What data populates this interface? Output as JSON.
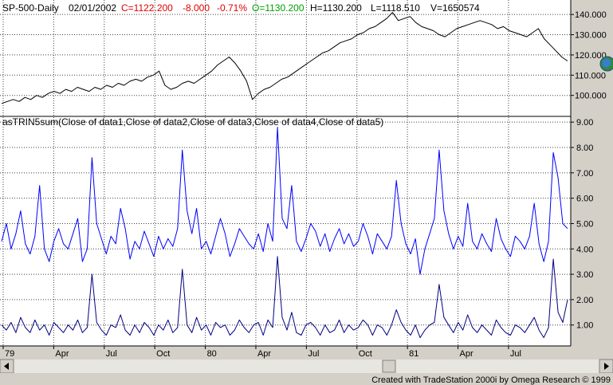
{
  "header": {
    "symbol": "SP-500-Daily",
    "date": "02/01/2002",
    "close": "C=1122.200",
    "change": "-8.000",
    "change_pct": "-0.71%",
    "open": "O=1130.200",
    "high": "H=1130.200",
    "low": "L=1118.510",
    "volume": "V=1650574"
  },
  "indicator_label": "asTRIN5sum(Close of data1,Close of data2,Close of data3,Close of data4,Close of data5)",
  "footer": {
    "credit": "Created with TradeStation 2000i by Omega Research © 1999"
  },
  "colors": {
    "header_change": "#e00000",
    "header_open": "#00a000",
    "price_line": "#000000",
    "trin_sum_line": "#0000ff",
    "trin_daily_line": "#000080",
    "background": "#ffffff",
    "axis_panel": "#d4d0c8"
  },
  "icons": [
    "globe-icon",
    "scroll-left-arrow-icon",
    "scroll-right-arrow-icon"
  ],
  "chart_data": [
    {
      "type": "line",
      "name": "price-panel",
      "x_ticks": [
        "79",
        "Apr",
        "Jul",
        "Oct",
        "80",
        "Apr",
        "Jul",
        "Oct",
        "81",
        "Apr",
        "Jul"
      ],
      "y_ticks": [
        "100.000",
        "110.000",
        "120.000",
        "130.000",
        "140.000"
      ],
      "ylim": [
        92,
        144
      ],
      "grid": true,
      "series": [
        {
          "values": [
            96,
            97,
            98,
            97,
            99,
            98,
            100,
            99,
            101,
            102,
            101,
            103,
            102,
            104,
            103,
            102,
            104,
            103,
            105,
            104,
            106,
            105,
            107,
            108,
            107,
            109,
            110,
            112,
            105,
            103,
            104,
            106,
            107,
            106,
            108,
            110,
            112,
            115,
            117,
            119,
            116,
            112,
            107,
            98,
            101,
            103,
            104,
            106,
            108,
            109,
            111,
            113,
            115,
            117,
            119,
            121,
            122,
            124,
            126,
            127,
            128,
            130,
            131,
            133,
            134,
            136,
            138,
            141,
            137,
            138,
            139,
            136,
            134,
            133,
            132,
            130,
            129,
            131,
            133,
            134,
            135,
            136,
            137,
            136,
            135,
            133,
            134,
            132,
            131,
            130,
            129,
            131,
            133,
            128,
            125,
            122,
            119,
            117
          ]
        }
      ]
    },
    {
      "type": "line",
      "name": "trin-panel",
      "y_ticks": [
        "1.00",
        "2.00",
        "3.00",
        "4.00",
        "5.00",
        "6.00",
        "7.00",
        "8.00",
        "9.00"
      ],
      "ylim": [
        0.3,
        9.1
      ],
      "grid": true,
      "series": [
        {
          "values": [
            4.3,
            5.0,
            4.0,
            4.6,
            5.5,
            4.2,
            3.8,
            4.5,
            6.5,
            4.0,
            3.5,
            4.3,
            4.8,
            4.2,
            4.0,
            4.6,
            5.2,
            3.5,
            4.0,
            7.6,
            5.0,
            4.4,
            3.8,
            4.5,
            4.2,
            5.6,
            4.8,
            3.6,
            4.3,
            4.0,
            4.7,
            4.2,
            3.7,
            4.5,
            4.0,
            4.4,
            4.1,
            4.8,
            7.9,
            5.5,
            4.6,
            5.6,
            4.0,
            4.3,
            3.8,
            4.5,
            5.2,
            4.6,
            3.7,
            4.2,
            4.8,
            4.5,
            4.2,
            4.0,
            4.6,
            3.9,
            5.0,
            4.3,
            8.8,
            5.2,
            4.8,
            6.5,
            4.3,
            3.9,
            4.4,
            5.0,
            4.7,
            4.1,
            4.6,
            3.9,
            4.4,
            4.8,
            4.2,
            4.6,
            4.1,
            4.3,
            5.0,
            4.5,
            3.8,
            4.6,
            4.3,
            4.0,
            4.5,
            6.7,
            5.0,
            4.2,
            3.8,
            4.4,
            3.0,
            4.0,
            4.6,
            5.2,
            7.9,
            5.5,
            4.6,
            4.0,
            4.5,
            4.1,
            5.8,
            4.3,
            4.0,
            4.6,
            4.2,
            3.9,
            5.2,
            4.4,
            4.0,
            3.7,
            4.5,
            4.3,
            4.0,
            4.5,
            5.8,
            4.2,
            3.5,
            4.3,
            7.8,
            6.8,
            5.0,
            4.8
          ]
        },
        {
          "values": [
            1.0,
            0.8,
            1.1,
            0.7,
            1.3,
            0.9,
            0.7,
            1.2,
            0.8,
            1.0,
            0.6,
            1.1,
            0.9,
            0.7,
            1.0,
            0.8,
            1.2,
            0.7,
            0.9,
            3.0,
            1.1,
            0.8,
            0.6,
            1.0,
            0.9,
            1.4,
            0.8,
            0.6,
            1.0,
            0.7,
            1.1,
            0.9,
            0.6,
            1.0,
            0.8,
            1.2,
            0.7,
            0.9,
            3.2,
            1.0,
            0.7,
            1.3,
            0.8,
            1.0,
            0.6,
            1.1,
            0.9,
            1.0,
            0.6,
            0.8,
            1.2,
            0.9,
            0.7,
            1.0,
            1.1,
            0.6,
            1.2,
            0.9,
            3.7,
            1.3,
            0.8,
            1.5,
            0.7,
            0.6,
            1.0,
            1.1,
            0.9,
            0.6,
            1.0,
            0.7,
            0.8,
            1.2,
            0.7,
            1.0,
            0.8,
            0.9,
            1.2,
            1.0,
            0.6,
            1.0,
            0.9,
            0.6,
            1.0,
            1.6,
            1.1,
            0.8,
            0.6,
            1.0,
            0.5,
            0.8,
            1.0,
            1.1,
            2.6,
            1.3,
            1.0,
            0.7,
            1.1,
            0.8,
            1.4,
            0.9,
            0.7,
            1.0,
            0.8,
            0.6,
            1.2,
            0.9,
            0.7,
            0.6,
            1.0,
            0.9,
            0.7,
            1.0,
            1.3,
            0.8,
            0.5,
            0.9,
            3.6,
            1.5,
            1.1,
            2.0
          ]
        }
      ]
    }
  ]
}
